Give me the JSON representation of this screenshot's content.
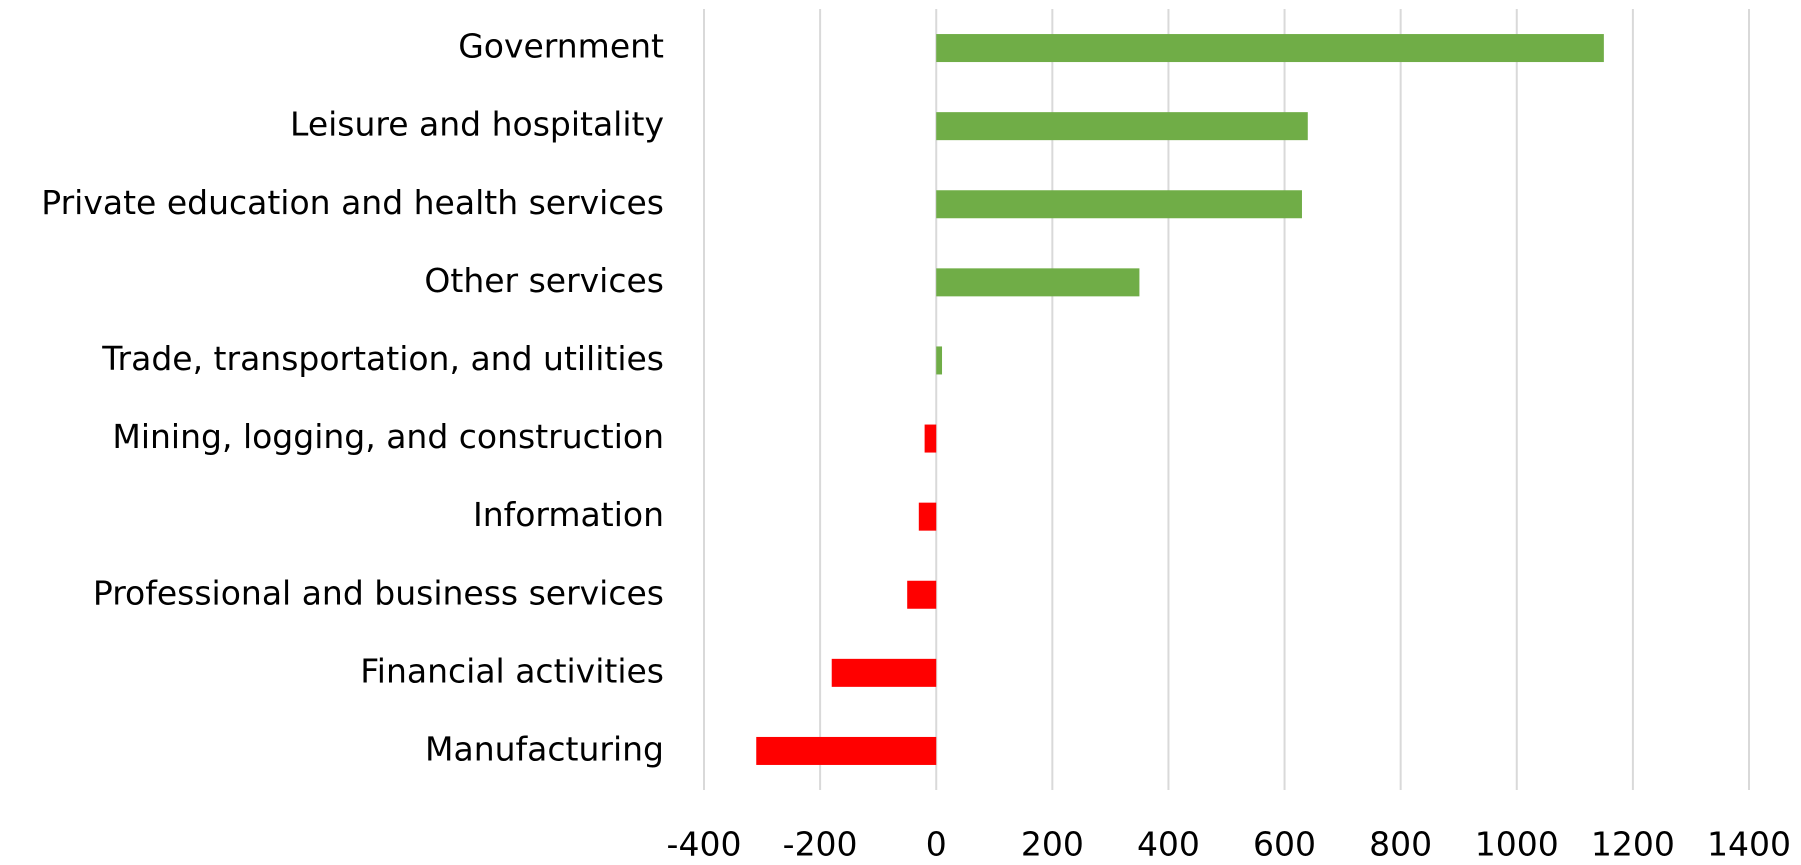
{
  "chart_data": {
    "type": "barh",
    "categories": [
      "Government",
      "Leisure and hospitality",
      "Private education and health services",
      "Other services",
      "Trade, transportation, and utilities",
      "Mining, logging, and construction",
      "Information",
      "Professional and business services",
      "Financial activities",
      "Manufacturing"
    ],
    "values": [
      1150,
      640,
      630,
      350,
      10,
      -20,
      -30,
      -50,
      -180,
      -310
    ],
    "positive_color": "#70ad47",
    "negative_color": "#ff0000",
    "xlim": [
      -400,
      1400
    ],
    "xticks": [
      -400,
      -200,
      0,
      200,
      400,
      600,
      800,
      1000,
      1200,
      1400
    ],
    "grid": true
  }
}
